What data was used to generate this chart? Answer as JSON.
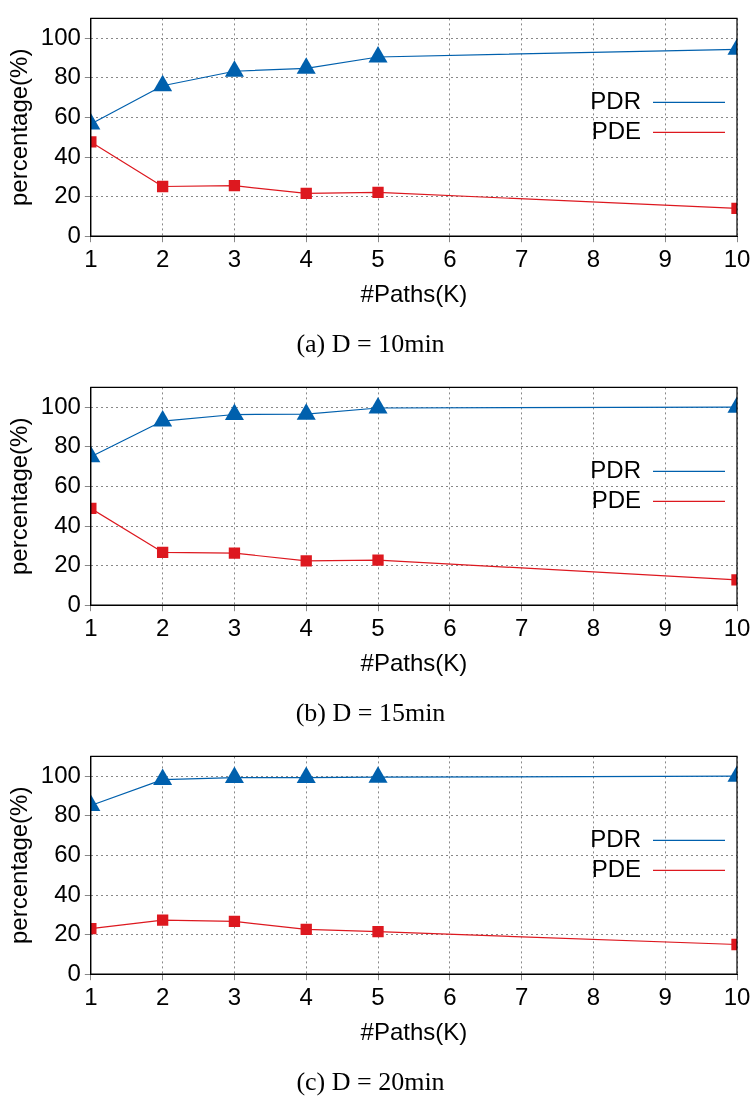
{
  "chart_data": [
    {
      "type": "line",
      "title": "(a) D = 10min",
      "xlabel": "#Paths(K)",
      "ylabel": "percentage(%)",
      "x": [
        1,
        2,
        3,
        4,
        5,
        10
      ],
      "xlim": [
        1,
        10
      ],
      "xticks": [
        1,
        2,
        3,
        4,
        5,
        6,
        7,
        8,
        9,
        10
      ],
      "ylim": [
        0,
        110
      ],
      "yticks": [
        0,
        20,
        40,
        60,
        80,
        100
      ],
      "grid": true,
      "legend": "right",
      "line_style": "solid",
      "series": [
        {
          "name": "PDR",
          "color": "#0060ad",
          "marker": "triangle",
          "values": [
            56.7,
            76,
            83.3,
            84.8,
            90.5,
            94.4
          ]
        },
        {
          "name": "PDE",
          "color": "#dd181f",
          "marker": "square",
          "values": [
            47.6,
            25.1,
            25.5,
            21.6,
            22.1,
            14.1
          ]
        }
      ]
    },
    {
      "type": "line",
      "title": "(b) D = 15min",
      "xlabel": "#Paths(K)",
      "ylabel": "percentage(%)",
      "x": [
        1,
        2,
        3,
        4,
        5,
        10
      ],
      "xlim": [
        1,
        10
      ],
      "xticks": [
        1,
        2,
        3,
        4,
        5,
        6,
        7,
        8,
        9,
        10
      ],
      "ylim": [
        0,
        110
      ],
      "yticks": [
        0,
        20,
        40,
        60,
        80,
        100
      ],
      "grid": true,
      "legend": "right",
      "line_style": "solid",
      "series": [
        {
          "name": "PDR",
          "color": "#0060ad",
          "marker": "triangle",
          "values": [
            75,
            93,
            96.3,
            96.5,
            99.6,
            100
          ]
        },
        {
          "name": "PDE",
          "color": "#dd181f",
          "marker": "square",
          "values": [
            48.9,
            26.7,
            26.3,
            22.4,
            22.8,
            12.8
          ]
        }
      ]
    },
    {
      "type": "line",
      "title": "(c) D = 20min",
      "xlabel": "#Paths(K)",
      "ylabel": "percentage(%)",
      "x": [
        1,
        2,
        3,
        4,
        5,
        10
      ],
      "xlim": [
        1,
        10
      ],
      "xticks": [
        1,
        2,
        3,
        4,
        5,
        6,
        7,
        8,
        9,
        10
      ],
      "ylim": [
        0,
        110
      ],
      "yticks": [
        0,
        20,
        40,
        60,
        80,
        100
      ],
      "grid": true,
      "legend": "right",
      "line_style": "solid",
      "series": [
        {
          "name": "PDR",
          "color": "#0060ad",
          "marker": "triangle",
          "values": [
            85.2,
            98.3,
            99.3,
            99.3,
            99.5,
            100
          ]
        },
        {
          "name": "PDE",
          "color": "#dd181f",
          "marker": "square",
          "values": [
            23,
            27.3,
            26.7,
            22.6,
            21.5,
            15
          ]
        }
      ]
    }
  ]
}
